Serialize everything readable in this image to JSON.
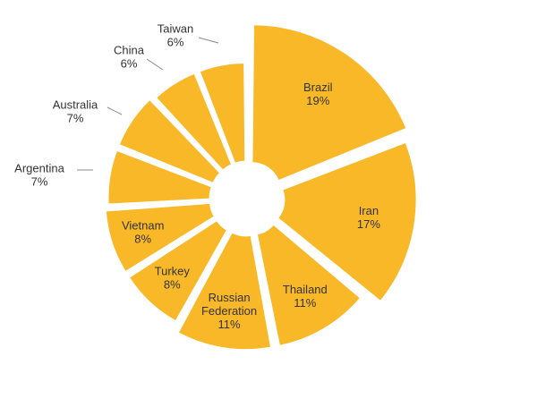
{
  "chart_data": {
    "type": "pie",
    "style": "exploded",
    "slice_color": "#F8B827",
    "label_color": "#333333",
    "slices": [
      {
        "name": "Brazil",
        "label_lines": [
          "Brazil"
        ],
        "percent_label": "19%",
        "value": 19,
        "label_inside": true
      },
      {
        "name": "Iran",
        "label_lines": [
          "Iran"
        ],
        "percent_label": "17%",
        "value": 17,
        "label_inside": true
      },
      {
        "name": "Thailand",
        "label_lines": [
          "Thailand"
        ],
        "percent_label": "11%",
        "value": 11,
        "label_inside": true
      },
      {
        "name": "Russian Federation",
        "label_lines": [
          "Russian",
          "Federation"
        ],
        "percent_label": "11%",
        "value": 11,
        "label_inside": true
      },
      {
        "name": "Turkey",
        "label_lines": [
          "Turkey"
        ],
        "percent_label": "8%",
        "value": 8,
        "label_inside": true
      },
      {
        "name": "Vietnam",
        "label_lines": [
          "Vietnam"
        ],
        "percent_label": "8%",
        "value": 8,
        "label_inside": true
      },
      {
        "name": "Argentina",
        "label_lines": [
          "Argentina"
        ],
        "percent_label": "7%",
        "value": 7,
        "label_inside": false
      },
      {
        "name": "Australia",
        "label_lines": [
          "Australia"
        ],
        "percent_label": "7%",
        "value": 7,
        "label_inside": false
      },
      {
        "name": "China",
        "label_lines": [
          "China"
        ],
        "percent_label": "6%",
        "value": 6,
        "label_inside": false
      },
      {
        "name": "Taiwan",
        "label_lines": [
          "Taiwan"
        ],
        "percent_label": "6%",
        "value": 6,
        "label_inside": false
      }
    ]
  }
}
